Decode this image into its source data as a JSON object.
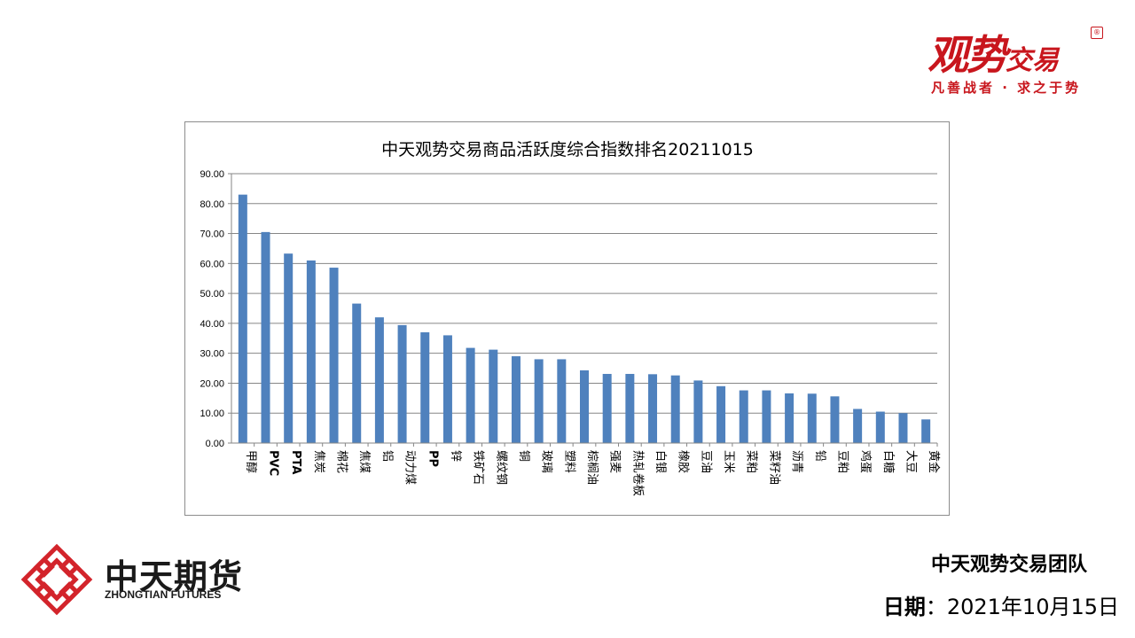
{
  "brand": {
    "main_big": "观势",
    "main_small": "交易",
    "seal": "®",
    "slogan": "凡善战者 · 求之于势",
    "color": "#c8161d"
  },
  "company": {
    "name_cn": "中天期货",
    "name_en": "ZHONGTIAN FUTURES",
    "logo_color": "#d3242b"
  },
  "footer": {
    "team": "中天观势交易团队",
    "date_label": "日期",
    "date_sep": "：",
    "date_value": "2021年10月15日"
  },
  "chart_data": {
    "type": "bar",
    "title": "中天观势交易商品活跃度综合指数排名20211015",
    "xlabel": "",
    "ylabel": "",
    "ylim": [
      0,
      90
    ],
    "yticks": [
      "0.00",
      "10.00",
      "20.00",
      "30.00",
      "40.00",
      "50.00",
      "60.00",
      "70.00",
      "80.00",
      "90.00"
    ],
    "grid": true,
    "bar_color": "#4f81bd",
    "categories": [
      "甲醇",
      "PVC",
      "PTA",
      "焦炭",
      "棉花",
      "焦煤",
      "铝",
      "动力煤",
      "PP",
      "锌",
      "铁矿石",
      "螺纹钢",
      "铜",
      "玻璃",
      "塑料",
      "棕榈油",
      "强麦",
      "热轧卷板",
      "白银",
      "橡胶",
      "豆油",
      "玉米",
      "菜粕",
      "菜籽油",
      "沥青",
      "铅",
      "豆粕",
      "鸡蛋",
      "白糖",
      "大豆",
      "黄金"
    ],
    "values": [
      83.0,
      70.5,
      63.3,
      61.0,
      58.6,
      46.6,
      42.0,
      39.4,
      37.0,
      36.0,
      31.8,
      31.2,
      29.0,
      28.0,
      28.0,
      24.3,
      23.1,
      23.1,
      23.0,
      22.6,
      20.9,
      19.0,
      17.6,
      17.6,
      16.6,
      16.5,
      15.6,
      11.4,
      10.5,
      10.0,
      7.9
    ]
  }
}
